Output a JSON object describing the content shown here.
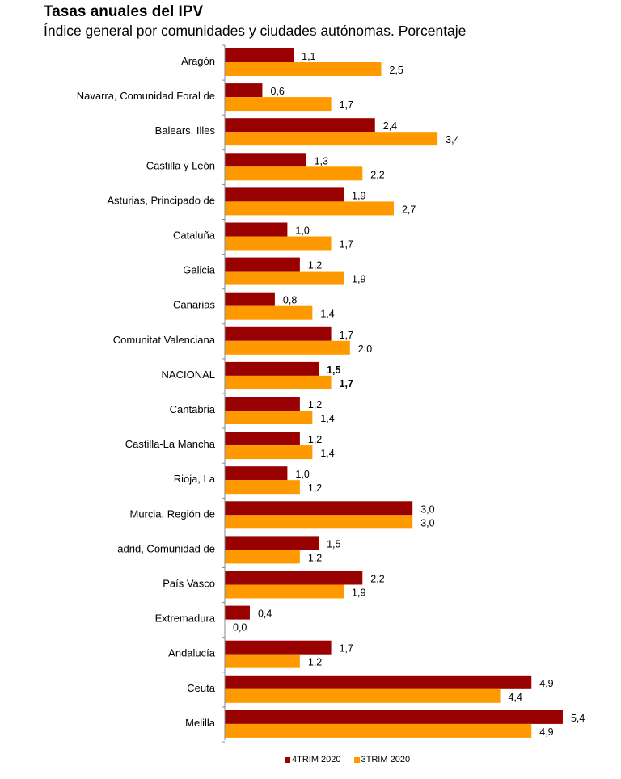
{
  "chart_data": {
    "type": "bar",
    "orientation": "horizontal",
    "title": "Tasas anuales del IPV",
    "subtitle": "Índice general por comunidades y ciudades autónomas. Porcentaje",
    "categories": [
      "Aragón",
      "Navarra, Comunidad Foral de",
      "Balears, Illes",
      "Castilla y León",
      "Asturias, Principado de",
      "Cataluña",
      "Galicia",
      "Canarias",
      "Comunitat Valenciana",
      "NACIONAL",
      "Cantabria",
      "Castilla-La Mancha",
      "Rioja, La",
      "Murcia, Región de",
      "adrid, Comunidad de",
      "País Vasco",
      "Extremadura",
      "Andalucía",
      "Ceuta",
      "Melilla"
    ],
    "series": [
      {
        "name": "4TRIM 2020",
        "color": "#990000",
        "values": [
          1.1,
          0.6,
          2.4,
          1.3,
          1.9,
          1.0,
          1.2,
          0.8,
          1.7,
          1.5,
          1.2,
          1.2,
          1.0,
          3.0,
          1.5,
          2.2,
          0.4,
          1.7,
          4.9,
          5.4
        ],
        "labels": [
          "1,1",
          "0,6",
          "2,4",
          "1,3",
          "1,9",
          "1,0",
          "1,2",
          "0,8",
          "1,7",
          "1,5",
          "1,2",
          "1,2",
          "1,0",
          "3,0",
          "1,5",
          "2,2",
          "0,4",
          "1,7",
          "4,9",
          "5,4"
        ]
      },
      {
        "name": "3TRIM 2020",
        "color": "#FF9900",
        "values": [
          2.5,
          1.7,
          3.4,
          2.2,
          2.7,
          1.7,
          1.9,
          1.4,
          2.0,
          1.7,
          1.4,
          1.4,
          1.2,
          3.0,
          1.2,
          1.9,
          0.0,
          1.2,
          4.4,
          4.9
        ],
        "labels": [
          "2,5",
          "1,7",
          "3,4",
          "2,2",
          "2,7",
          "1,7",
          "1,9",
          "1,4",
          "2,0",
          "1,7",
          "1,4",
          "1,4",
          "1,2",
          "3,0",
          "1,2",
          "1,9",
          "0,0",
          "1,2",
          "4,4",
          "4,9"
        ]
      }
    ],
    "highlight_category": "NACIONAL",
    "xlim": [
      0,
      5.4
    ],
    "grid": false,
    "legend_position": "bottom"
  }
}
